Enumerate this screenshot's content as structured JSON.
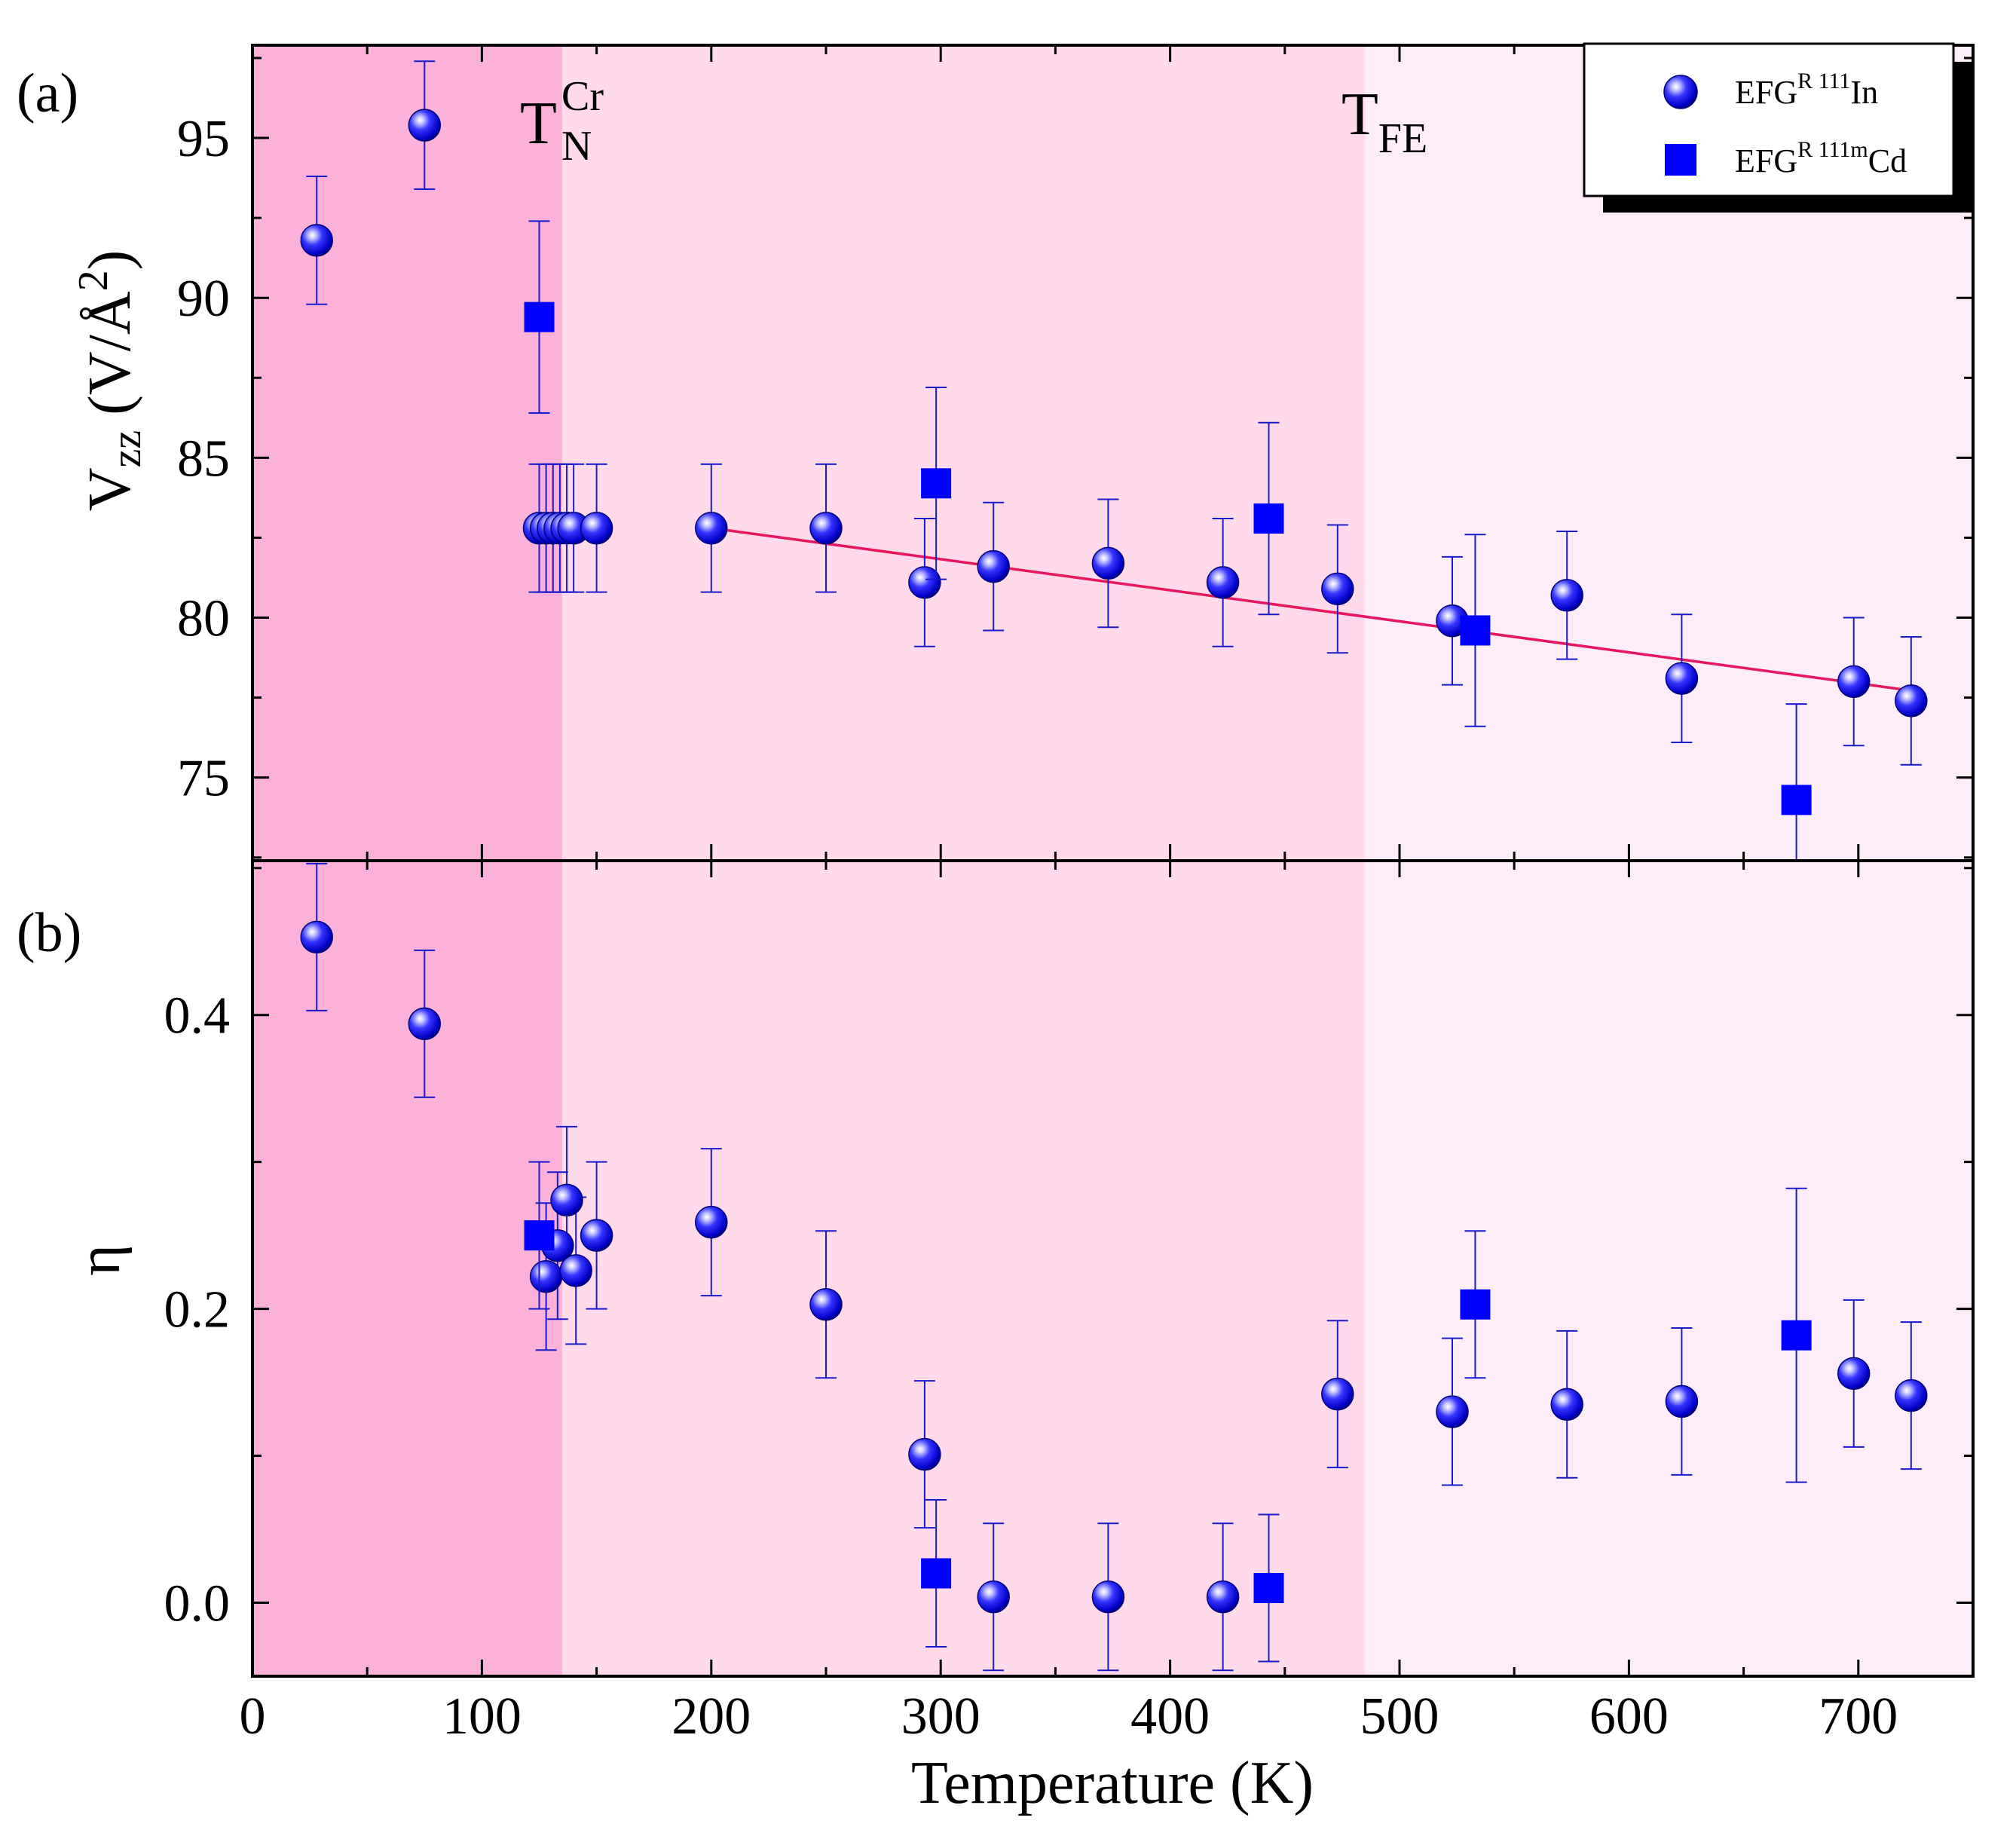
{
  "chart_data": {
    "type": "scatter",
    "title": "",
    "xlabel": "Temperature (K)",
    "xlim": [
      0,
      750
    ],
    "xticks": [
      0,
      100,
      200,
      300,
      400,
      500,
      600,
      700
    ],
    "regions": [
      {
        "from": 0,
        "to": 135,
        "color": "#fbb1d8"
      },
      {
        "from": 135,
        "to": 485,
        "color": "#fedaea"
      },
      {
        "from": 485,
        "to": 750,
        "color": "#fdedf8"
      }
    ],
    "annotations": [
      {
        "name": "tn-cr",
        "base": "T",
        "sub": "N",
        "sup": "Cr",
        "x": 128
      },
      {
        "name": "tfe",
        "base": "T",
        "sub": "FE",
        "x": 475
      }
    ],
    "legend": {
      "position": "top-right",
      "entries": [
        {
          "name": "in",
          "label_base": "EFG",
          "label_sup": "R 111",
          "label_tail": "In",
          "marker": "sphere"
        },
        {
          "name": "cd",
          "label_base": "EFG",
          "label_sup": "R 111m",
          "label_tail": "Cd",
          "marker": "square"
        }
      ]
    },
    "colors": {
      "marker": "#0000ff",
      "error": "#1a1acc",
      "fit": "#e8175d",
      "axis": "#000000"
    },
    "panels": [
      {
        "id": "a",
        "label": "(a)",
        "ylabel_base": "V",
        "ylabel_sub": "zz",
        "ylabel_unit": " (V/Å",
        "ylabel_sup": "2",
        "ylabel_close": ")",
        "ylim": [
          72.4,
          97.9
        ],
        "yticks": [
          75,
          80,
          85,
          90,
          95
        ],
        "ytick_labels": [
          "75",
          "80",
          "85",
          "90",
          "95"
        ],
        "fit": {
          "x": [
            200,
            725
          ],
          "y": [
            82.8,
            77.7
          ]
        },
        "series": [
          {
            "name": "EFG R 111In",
            "marker": "sphere",
            "points": [
              {
                "x": 28,
                "y": 91.8,
                "err": 2.0
              },
              {
                "x": 75,
                "y": 95.4,
                "err": 2.0
              },
              {
                "x": 125,
                "y": 82.8,
                "err": 2.0
              },
              {
                "x": 128,
                "y": 82.8,
                "err": 2.0
              },
              {
                "x": 131,
                "y": 82.8,
                "err": 2.0
              },
              {
                "x": 134,
                "y": 82.8,
                "err": 2.0
              },
              {
                "x": 137,
                "y": 82.8,
                "err": 2.0
              },
              {
                "x": 140,
                "y": 82.8,
                "err": 2.0
              },
              {
                "x": 150,
                "y": 82.8,
                "err": 2.0
              },
              {
                "x": 200,
                "y": 82.8,
                "err": 2.0
              },
              {
                "x": 250,
                "y": 82.8,
                "err": 2.0
              },
              {
                "x": 293,
                "y": 81.1,
                "err": 2.0
              },
              {
                "x": 323,
                "y": 81.6,
                "err": 2.0
              },
              {
                "x": 373,
                "y": 81.7,
                "err": 2.0
              },
              {
                "x": 423,
                "y": 81.1,
                "err": 2.0
              },
              {
                "x": 473,
                "y": 80.9,
                "err": 2.0
              },
              {
                "x": 523,
                "y": 79.9,
                "err": 2.0
              },
              {
                "x": 573,
                "y": 80.7,
                "err": 2.0
              },
              {
                "x": 623,
                "y": 78.1,
                "err": 2.0
              },
              {
                "x": 698,
                "y": 78.0,
                "err": 2.0
              },
              {
                "x": 723,
                "y": 77.4,
                "err": 2.0
              }
            ]
          },
          {
            "name": "EFG R 111mCd",
            "marker": "square",
            "points": [
              {
                "x": 125,
                "y": 89.4,
                "err": 3.0
              },
              {
                "x": 298,
                "y": 84.2,
                "err": 3.0
              },
              {
                "x": 443,
                "y": 83.1,
                "err": 3.0
              },
              {
                "x": 533,
                "y": 79.6,
                "err": 3.0
              },
              {
                "x": 673,
                "y": 74.3,
                "err": 3.0
              }
            ]
          }
        ]
      },
      {
        "id": "b",
        "label": "(b)",
        "ylabel_base": "η",
        "ylim": [
          -0.05,
          0.505
        ],
        "yticks": [
          0.0,
          0.2,
          0.4
        ],
        "ytick_labels": [
          "0.0",
          "0.2",
          "0.4"
        ],
        "series": [
          {
            "name": "EFG R 111In",
            "marker": "sphere",
            "points": [
              {
                "x": 28,
                "y": 0.453,
                "err": 0.05
              },
              {
                "x": 75,
                "y": 0.394,
                "err": 0.05
              },
              {
                "x": 128,
                "y": 0.222,
                "err": 0.05
              },
              {
                "x": 133,
                "y": 0.243,
                "err": 0.05
              },
              {
                "x": 137,
                "y": 0.274,
                "err": 0.05
              },
              {
                "x": 141,
                "y": 0.226,
                "err": 0.05
              },
              {
                "x": 150,
                "y": 0.25,
                "err": 0.05
              },
              {
                "x": 200,
                "y": 0.259,
                "err": 0.05
              },
              {
                "x": 250,
                "y": 0.203,
                "err": 0.05
              },
              {
                "x": 293,
                "y": 0.101,
                "err": 0.05
              },
              {
                "x": 323,
                "y": 0.004,
                "err": 0.05
              },
              {
                "x": 373,
                "y": 0.004,
                "err": 0.05
              },
              {
                "x": 423,
                "y": 0.004,
                "err": 0.05
              },
              {
                "x": 473,
                "y": 0.142,
                "err": 0.05
              },
              {
                "x": 523,
                "y": 0.13,
                "err": 0.05
              },
              {
                "x": 573,
                "y": 0.135,
                "err": 0.05
              },
              {
                "x": 623,
                "y": 0.137,
                "err": 0.05
              },
              {
                "x": 698,
                "y": 0.156,
                "err": 0.05
              },
              {
                "x": 723,
                "y": 0.141,
                "err": 0.05
              }
            ]
          },
          {
            "name": "EFG R 111mCd",
            "marker": "square",
            "points": [
              {
                "x": 125,
                "y": 0.25,
                "err": 0.05
              },
              {
                "x": 298,
                "y": 0.02,
                "err": 0.05
              },
              {
                "x": 443,
                "y": 0.01,
                "err": 0.05
              },
              {
                "x": 533,
                "y": 0.203,
                "err": 0.05
              },
              {
                "x": 673,
                "y": 0.182,
                "err": 0.1
              }
            ]
          }
        ]
      }
    ]
  }
}
